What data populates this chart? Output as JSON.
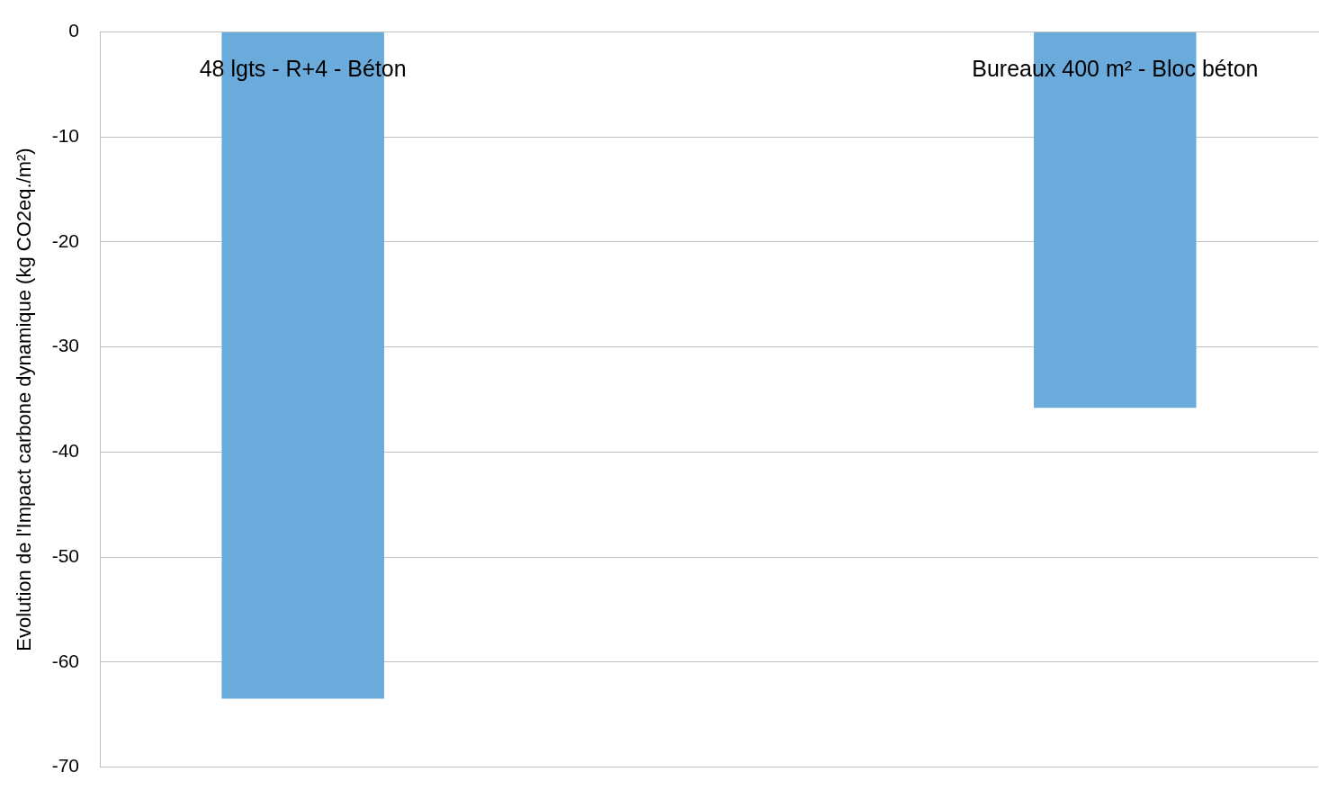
{
  "chart_data": {
    "type": "bar",
    "categories": [
      "48 lgts - R+4 - Béton",
      null,
      "Bureaux 400 m² - Bloc béton"
    ],
    "values": [
      -63.5,
      null,
      -35.8
    ],
    "color": "#6aabdb",
    "ylabel": "Evolution de l'Impact carbone dynamique (kg CO2eq./m²)",
    "ylim": [
      -70,
      0
    ],
    "yticks": [
      -70,
      -60,
      -50,
      -40,
      -30,
      -20,
      -10,
      0
    ],
    "grid": "y"
  }
}
